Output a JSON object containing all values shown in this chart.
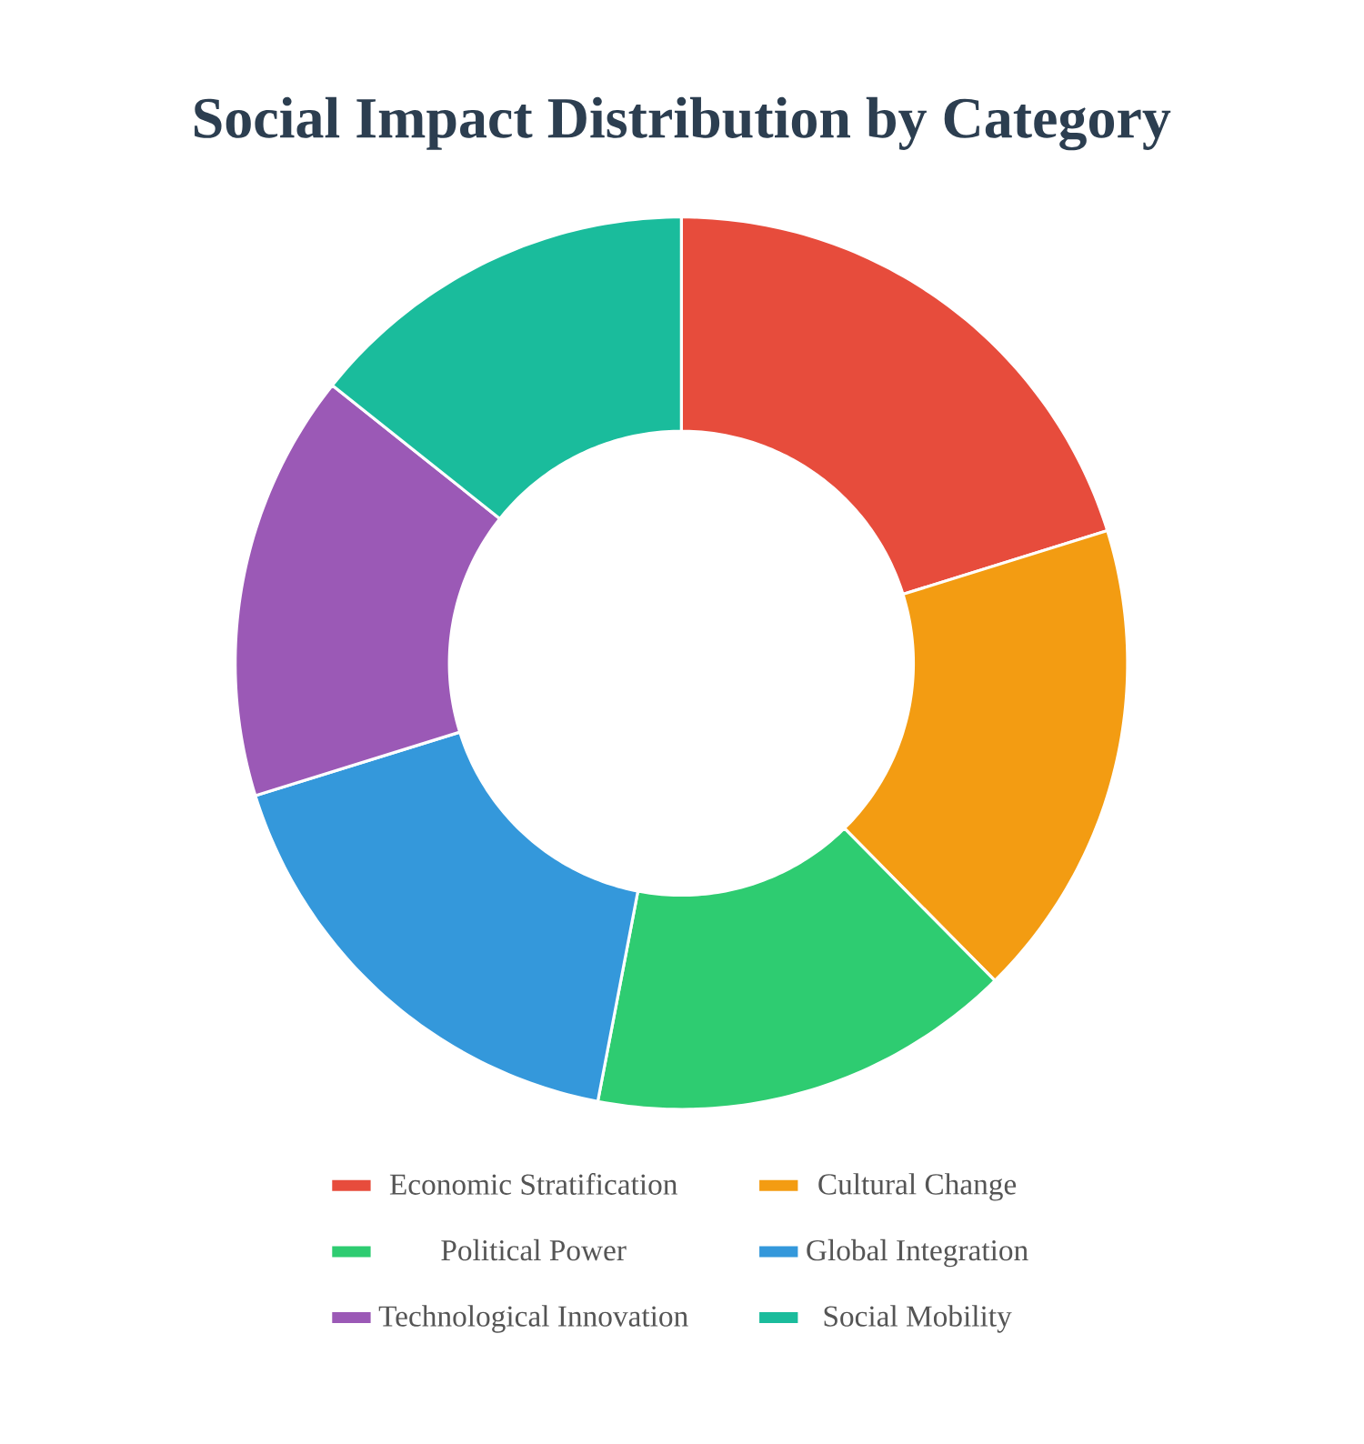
{
  "chart_data": {
    "type": "donut",
    "title": "Social Impact Distribution by Category",
    "categories": [
      "Economic Stratification",
      "Cultural Change",
      "Political Power",
      "Global Integration",
      "Technological Innovation",
      "Social Mobility"
    ],
    "values": [
      20.2,
      17.4,
      15.4,
      17.2,
      15.5,
      14.3
    ],
    "colors": [
      "#e74c3c",
      "#f39c12",
      "#2ecc71",
      "#3498db",
      "#9b59b6",
      "#1abc9c"
    ],
    "legend": "bottom"
  }
}
